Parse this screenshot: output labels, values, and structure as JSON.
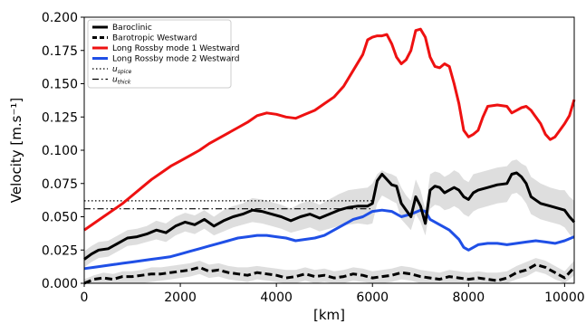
{
  "chart_data": {
    "type": "line",
    "xlabel": "[km]",
    "ylabel": "Velocity [m.s⁻¹]",
    "xlim": [
      0,
      10200
    ],
    "ylim": [
      0,
      0.2
    ],
    "xticks": [
      0,
      2000,
      4000,
      6000,
      8000,
      10000
    ],
    "xtick_labels": [
      "0",
      "2000",
      "4000",
      "6000",
      "8000",
      "10000"
    ],
    "yticks": [
      0,
      0.025,
      0.05,
      0.075,
      0.1,
      0.125,
      0.15,
      0.175,
      0.2
    ],
    "ytick_labels": [
      "0.000",
      "0.025",
      "0.050",
      "0.075",
      "0.100",
      "0.125",
      "0.150",
      "0.175",
      "0.200"
    ],
    "grid": false,
    "legend_position": "top-left",
    "series": [
      {
        "name": "Baroclinic",
        "color": "#000000",
        "style": "solid",
        "band": true,
        "x": [
          0,
          150,
          300,
          500,
          700,
          900,
          1100,
          1300,
          1500,
          1700,
          1900,
          2100,
          2300,
          2500,
          2700,
          2900,
          3100,
          3300,
          3500,
          3700,
          3900,
          4100,
          4300,
          4500,
          4700,
          4900,
          5100,
          5300,
          5500,
          5700,
          5900,
          6000,
          6100,
          6200,
          6300,
          6400,
          6500,
          6600,
          6700,
          6800,
          6900,
          7000,
          7100,
          7200,
          7300,
          7400,
          7500,
          7600,
          7700,
          7800,
          7900,
          8000,
          8100,
          8200,
          8400,
          8600,
          8800,
          8900,
          9000,
          9100,
          9200,
          9300,
          9500,
          9700,
          9900,
          10000,
          10100,
          10200
        ],
        "y": [
          0.018,
          0.022,
          0.025,
          0.026,
          0.03,
          0.034,
          0.035,
          0.037,
          0.04,
          0.038,
          0.043,
          0.046,
          0.044,
          0.048,
          0.043,
          0.047,
          0.05,
          0.052,
          0.055,
          0.054,
          0.052,
          0.05,
          0.047,
          0.05,
          0.052,
          0.049,
          0.052,
          0.055,
          0.057,
          0.058,
          0.058,
          0.06,
          0.077,
          0.082,
          0.078,
          0.074,
          0.073,
          0.06,
          0.055,
          0.05,
          0.065,
          0.058,
          0.045,
          0.07,
          0.073,
          0.072,
          0.068,
          0.07,
          0.072,
          0.07,
          0.065,
          0.063,
          0.068,
          0.07,
          0.072,
          0.074,
          0.075,
          0.082,
          0.083,
          0.08,
          0.075,
          0.065,
          0.06,
          0.058,
          0.056,
          0.055,
          0.05,
          0.046
        ],
        "band_lower": [
          0.012,
          0.016,
          0.019,
          0.02,
          0.024,
          0.028,
          0.029,
          0.031,
          0.033,
          0.031,
          0.036,
          0.039,
          0.037,
          0.041,
          0.036,
          0.039,
          0.042,
          0.044,
          0.046,
          0.045,
          0.043,
          0.041,
          0.038,
          0.04,
          0.042,
          0.039,
          0.041,
          0.043,
          0.044,
          0.045,
          0.044,
          0.045,
          0.06,
          0.066,
          0.064,
          0.062,
          0.06,
          0.048,
          0.044,
          0.04,
          0.052,
          0.046,
          0.036,
          0.056,
          0.059,
          0.058,
          0.055,
          0.056,
          0.058,
          0.056,
          0.052,
          0.05,
          0.054,
          0.056,
          0.058,
          0.06,
          0.061,
          0.067,
          0.068,
          0.065,
          0.06,
          0.052,
          0.048,
          0.046,
          0.044,
          0.042,
          0.037,
          0.033
        ],
        "band_upper": [
          0.024,
          0.028,
          0.031,
          0.032,
          0.036,
          0.04,
          0.041,
          0.043,
          0.047,
          0.045,
          0.05,
          0.053,
          0.051,
          0.055,
          0.05,
          0.055,
          0.058,
          0.06,
          0.064,
          0.063,
          0.061,
          0.059,
          0.056,
          0.06,
          0.062,
          0.059,
          0.063,
          0.067,
          0.07,
          0.071,
          0.072,
          0.075,
          0.082,
          0.085,
          0.083,
          0.082,
          0.08,
          0.072,
          0.066,
          0.062,
          0.078,
          0.07,
          0.056,
          0.082,
          0.084,
          0.083,
          0.08,
          0.082,
          0.085,
          0.083,
          0.078,
          0.076,
          0.082,
          0.083,
          0.085,
          0.087,
          0.088,
          0.092,
          0.093,
          0.09,
          0.088,
          0.08,
          0.075,
          0.072,
          0.07,
          0.07,
          0.065,
          0.062
        ]
      },
      {
        "name": "Barotropic Westward",
        "color": "#000000",
        "style": "dashed",
        "band": true,
        "x": [
          0,
          200,
          400,
          600,
          800,
          1000,
          1200,
          1400,
          1600,
          1800,
          2000,
          2200,
          2400,
          2600,
          2800,
          3000,
          3200,
          3400,
          3600,
          3800,
          4000,
          4200,
          4400,
          4600,
          4800,
          5000,
          5200,
          5400,
          5600,
          5800,
          6000,
          6200,
          6400,
          6600,
          6800,
          7000,
          7200,
          7400,
          7600,
          7800,
          8000,
          8200,
          8400,
          8600,
          8800,
          9000,
          9200,
          9400,
          9600,
          9800,
          10000,
          10200
        ],
        "y": [
          0.0,
          0.003,
          0.004,
          0.003,
          0.005,
          0.005,
          0.006,
          0.007,
          0.007,
          0.008,
          0.009,
          0.01,
          0.012,
          0.009,
          0.01,
          0.008,
          0.007,
          0.006,
          0.008,
          0.007,
          0.006,
          0.004,
          0.005,
          0.007,
          0.005,
          0.006,
          0.004,
          0.005,
          0.007,
          0.006,
          0.004,
          0.005,
          0.006,
          0.008,
          0.007,
          0.005,
          0.004,
          0.003,
          0.005,
          0.004,
          0.003,
          0.004,
          0.003,
          0.002,
          0.004,
          0.008,
          0.01,
          0.014,
          0.012,
          0.008,
          0.004,
          0.012
        ],
        "band_lower": [
          0.0,
          0.0,
          0.0,
          0.0,
          0.0,
          0.0,
          0.0,
          0.001,
          0.002,
          0.003,
          0.004,
          0.005,
          0.007,
          0.004,
          0.005,
          0.003,
          0.002,
          0.001,
          0.003,
          0.002,
          0.001,
          0.0,
          0.0,
          0.002,
          0.0,
          0.001,
          0.0,
          0.0,
          0.002,
          0.001,
          0.0,
          0.0,
          0.001,
          0.003,
          0.002,
          0.0,
          0.0,
          0.0,
          0.0,
          0.0,
          0.0,
          0.0,
          0.0,
          0.0,
          0.0,
          0.003,
          0.005,
          0.009,
          0.007,
          0.003,
          0.0,
          0.006
        ],
        "band_upper": [
          0.003,
          0.006,
          0.008,
          0.007,
          0.009,
          0.009,
          0.01,
          0.012,
          0.012,
          0.013,
          0.014,
          0.015,
          0.017,
          0.014,
          0.015,
          0.013,
          0.012,
          0.012,
          0.013,
          0.012,
          0.011,
          0.01,
          0.01,
          0.012,
          0.01,
          0.011,
          0.009,
          0.01,
          0.012,
          0.011,
          0.009,
          0.01,
          0.011,
          0.013,
          0.012,
          0.01,
          0.009,
          0.008,
          0.01,
          0.009,
          0.008,
          0.009,
          0.008,
          0.008,
          0.009,
          0.013,
          0.016,
          0.019,
          0.017,
          0.013,
          0.009,
          0.017
        ]
      },
      {
        "name": "Long Rossby mode 1 Westward",
        "color": "#ee1111",
        "style": "solid",
        "band": false,
        "x": [
          0,
          200,
          400,
          600,
          800,
          1000,
          1200,
          1400,
          1600,
          1800,
          2000,
          2200,
          2400,
          2600,
          2800,
          3000,
          3200,
          3400,
          3600,
          3800,
          4000,
          4200,
          4400,
          4600,
          4800,
          5000,
          5200,
          5400,
          5600,
          5800,
          5900,
          6000,
          6100,
          6200,
          6300,
          6400,
          6500,
          6600,
          6700,
          6800,
          6900,
          7000,
          7100,
          7200,
          7300,
          7400,
          7500,
          7600,
          7700,
          7800,
          7900,
          8000,
          8100,
          8200,
          8300,
          8400,
          8600,
          8800,
          8900,
          9000,
          9100,
          9200,
          9300,
          9400,
          9500,
          9600,
          9700,
          9800,
          9900,
          10000,
          10100,
          10200
        ],
        "y": [
          0.04,
          0.045,
          0.05,
          0.055,
          0.06,
          0.066,
          0.072,
          0.078,
          0.083,
          0.088,
          0.092,
          0.096,
          0.1,
          0.105,
          0.109,
          0.113,
          0.117,
          0.121,
          0.126,
          0.128,
          0.127,
          0.125,
          0.124,
          0.127,
          0.13,
          0.135,
          0.14,
          0.148,
          0.16,
          0.172,
          0.183,
          0.185,
          0.186,
          0.186,
          0.187,
          0.18,
          0.17,
          0.165,
          0.168,
          0.175,
          0.19,
          0.191,
          0.185,
          0.17,
          0.163,
          0.162,
          0.165,
          0.163,
          0.15,
          0.135,
          0.115,
          0.11,
          0.112,
          0.115,
          0.125,
          0.133,
          0.134,
          0.133,
          0.128,
          0.13,
          0.132,
          0.133,
          0.13,
          0.125,
          0.12,
          0.112,
          0.108,
          0.11,
          0.115,
          0.12,
          0.126,
          0.138
        ]
      },
      {
        "name": "Long Rossby mode 2 Westward",
        "color": "#1f4fe6",
        "style": "solid",
        "band": false,
        "x": [
          0,
          200,
          400,
          600,
          800,
          1000,
          1200,
          1400,
          1600,
          1800,
          2000,
          2200,
          2400,
          2600,
          2800,
          3000,
          3200,
          3400,
          3600,
          3800,
          4000,
          4200,
          4400,
          4600,
          4800,
          5000,
          5200,
          5400,
          5600,
          5800,
          6000,
          6200,
          6400,
          6600,
          6800,
          7000,
          7100,
          7200,
          7400,
          7600,
          7800,
          7900,
          8000,
          8200,
          8400,
          8600,
          8800,
          9000,
          9200,
          9400,
          9600,
          9800,
          10000,
          10200
        ],
        "y": [
          0.011,
          0.012,
          0.013,
          0.014,
          0.015,
          0.016,
          0.017,
          0.018,
          0.019,
          0.02,
          0.022,
          0.024,
          0.026,
          0.028,
          0.03,
          0.032,
          0.034,
          0.035,
          0.036,
          0.036,
          0.035,
          0.034,
          0.032,
          0.033,
          0.034,
          0.036,
          0.04,
          0.044,
          0.048,
          0.05,
          0.054,
          0.055,
          0.054,
          0.05,
          0.052,
          0.055,
          0.054,
          0.048,
          0.044,
          0.04,
          0.033,
          0.027,
          0.025,
          0.029,
          0.03,
          0.03,
          0.029,
          0.03,
          0.031,
          0.032,
          0.031,
          0.03,
          0.032,
          0.035
        ]
      }
    ],
    "reference_lines": [
      {
        "name": "u_spice",
        "label_main": "u",
        "label_sub": "spice",
        "style": "dotted",
        "y": 0.062,
        "x_end": 6000
      },
      {
        "name": "u_thick",
        "label_main": "u",
        "label_sub": "thick",
        "style": "dashdot",
        "y": 0.056,
        "x_end": 6000
      }
    ]
  }
}
